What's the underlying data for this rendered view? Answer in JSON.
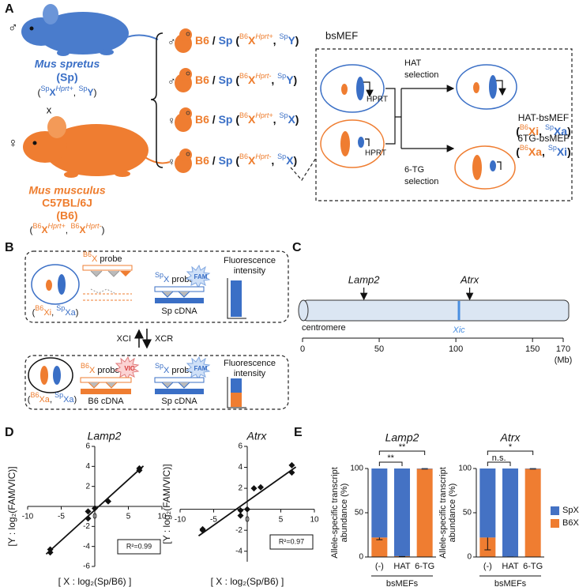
{
  "panel_a": {
    "label": "A",
    "spretus": {
      "sex": "♂",
      "name": "Mus spretus",
      "abbr": "(Sp)",
      "genotype": [
        "(",
        "Sp",
        "X",
        "Hprt+",
        ", ",
        "Sp",
        "Y",
        ")"
      ]
    },
    "cross": "x",
    "musculus": {
      "sex": "♀",
      "name": "Mus musculus",
      "strain": "C57BL/6J",
      "abbr": "(B6)",
      "genotype": [
        "(",
        "B6",
        "X",
        "Hprt+",
        ", ",
        "B6",
        "X",
        "Hprt-",
        ")"
      ]
    },
    "offspring": [
      {
        "sex": "♂",
        "genotype": [
          "B6",
          " / ",
          "Sp",
          " (",
          "B6",
          "X",
          "Hprt+",
          ", ",
          "Sp",
          "Y",
          ")"
        ]
      },
      {
        "sex": "♂",
        "genotype": [
          "B6",
          " / ",
          "Sp",
          " (",
          "B6",
          "X",
          "Hprt-",
          ", ",
          "Sp",
          "Y",
          ")"
        ]
      },
      {
        "sex": "♀",
        "genotype": [
          "B6",
          " / ",
          "Sp",
          " (",
          "B6",
          "X",
          "Hprt+",
          ", ",
          "Sp",
          "X",
          ")"
        ]
      },
      {
        "sex": "♀",
        "genotype": [
          "B6",
          " / ",
          "Sp",
          " (",
          "B6",
          "X",
          "Hprt-",
          ", ",
          "Sp",
          "X",
          ")"
        ]
      }
    ],
    "bsmef": {
      "title": "bsMEF",
      "hprt": [
        "HPRT",
        "HPRT"
      ],
      "hat_selection": [
        "HAT",
        "selection"
      ],
      "tg_selection": [
        "6-TG",
        "selection"
      ],
      "hat_result": {
        "name": "HAT-bsMEF",
        "genotype": [
          "(",
          "B6",
          "Xi",
          ", ",
          "Sp",
          "Xa",
          ")"
        ]
      },
      "tg_result": {
        "name": "6TG-bsMEF",
        "genotype": [
          "(",
          "B6",
          "Xa",
          ", ",
          "Sp",
          "Xi",
          ")"
        ]
      }
    }
  },
  "panel_b": {
    "label": "B",
    "active": {
      "genotype": [
        "(",
        "B6",
        "Xi",
        ", ",
        "Sp",
        "Xa",
        ")"
      ],
      "b6_probe": [
        "B6",
        "X",
        " probe"
      ],
      "sp_probe": [
        "Sp",
        "X",
        " probe"
      ],
      "sp_dye": "FAM",
      "sp_cdna": "Sp cDNA",
      "fluorescence": [
        "Fluorescence",
        "intensity"
      ]
    },
    "xci": "XCI",
    "xcr": "XCR",
    "reactivated": {
      "genotype": [
        "(",
        "B6",
        "Xa",
        ", ",
        "Sp",
        "Xa",
        ")"
      ],
      "b6_probe": [
        "B6",
        "X",
        " probe"
      ],
      "b6_dye": "VIC",
      "b6_cdna": "B6 cDNA",
      "sp_probe": [
        "Sp",
        "X",
        " probe"
      ],
      "sp_dye": "FAM",
      "sp_cdna": "Sp cDNA",
      "fluorescence": [
        "Fluorescence",
        "intensity"
      ]
    }
  },
  "panel_c": {
    "label": "C",
    "centromere": "centromere",
    "genes": [
      {
        "name": "Lamp2",
        "position": 40
      },
      {
        "name": "Atrx",
        "position": 109
      }
    ],
    "xic": {
      "name": "Xic",
      "position": 102
    },
    "xlim": [
      0,
      170
    ],
    "xticks": [
      0,
      50,
      100,
      150,
      170
    ],
    "unit": "(Mb)"
  },
  "panel_d": {
    "label": "D"
  },
  "panel_e": {
    "label": "E"
  },
  "chart_data": [
    {
      "type": "scatter",
      "title": "Lamp2",
      "x_label": "[ X : log₂(Sp/B6) ]",
      "y_label": "[Y : log₂(FAM/VIC)]",
      "x": [
        -6.64,
        -6.64,
        -1,
        -1,
        0,
        2,
        6.64,
        6.64
      ],
      "values": [
        -4.6,
        -4.3,
        -1.2,
        -0.5,
        -0.2,
        0.5,
        3.6,
        3.8
      ],
      "color": "#111111",
      "xlim": [
        -10,
        10
      ],
      "ylim": [
        -6,
        6
      ],
      "xticks": [
        -10,
        -5,
        0,
        5,
        10
      ],
      "yticks": [
        -6,
        -4,
        -2,
        2,
        4,
        6
      ],
      "trendline": true,
      "annotation": "R²=0.99"
    },
    {
      "type": "scatter",
      "title": "Atrx",
      "x_label": "[ X : log₂(Sp/B6) ]",
      "y_label": "[Y : log₂(FAM/VIC)]",
      "x": [
        -6.64,
        -6.64,
        -1,
        -1,
        0,
        1,
        2,
        6.64,
        6.64
      ],
      "values": [
        -2,
        -1.9,
        -0.6,
        -0.1,
        0,
        2,
        2.1,
        3.5,
        4.2
      ],
      "color": "#111111",
      "xlim": [
        -10,
        10
      ],
      "ylim": [
        -5,
        6
      ],
      "xticks": [
        -10,
        -5,
        0,
        5,
        10
      ],
      "yticks": [
        -4,
        -2,
        2,
        4,
        6
      ],
      "trendline": true,
      "annotation": "R²=0.97"
    },
    {
      "type": "stacked_bar",
      "title": "Lamp2",
      "y_label": [
        "Allele-specific transcript",
        "abundance (%)"
      ],
      "x_label": "bsMEFs",
      "categories": [
        "(-)",
        "HAT",
        "6-TG"
      ],
      "series": [
        {
          "color": "#ef7d31",
          "values": [
            22,
            1,
            99.6
          ],
          "errors": [
            2.5,
            0.5,
            0.3
          ]
        },
        {
          "color": "#4472c4",
          "values": [
            78,
            99,
            0.4
          ]
        }
      ],
      "ylim": [
        0,
        100
      ],
      "yticks": [
        0,
        50,
        100
      ],
      "significance": [
        {
          "label": "**",
          "pair": [
            0,
            1
          ]
        },
        {
          "label": "**",
          "pair": [
            0,
            2
          ]
        }
      ]
    },
    {
      "type": "stacked_bar",
      "title": "Atrx",
      "y_label": [
        "Allele-specific transcript",
        "abundance (%)"
      ],
      "x_label": "bsMEFs",
      "categories": [
        "(-)",
        "HAT",
        "6-TG"
      ],
      "series": [
        {
          "name": "B6X",
          "color": "#ef7d31",
          "values": [
            22,
            0.5,
            99.6
          ],
          "errors": [
            14,
            0.3,
            0.3
          ]
        },
        {
          "name": "SpX",
          "color": "#4472c4",
          "values": [
            78,
            99.5,
            0.4
          ]
        }
      ],
      "ylim": [
        0,
        100
      ],
      "yticks": [
        0,
        50,
        100
      ],
      "legend": "right",
      "significance": [
        {
          "label": "n.s.",
          "pair": [
            0,
            1
          ]
        },
        {
          "label": "*",
          "pair": [
            0,
            2
          ]
        }
      ]
    }
  ]
}
